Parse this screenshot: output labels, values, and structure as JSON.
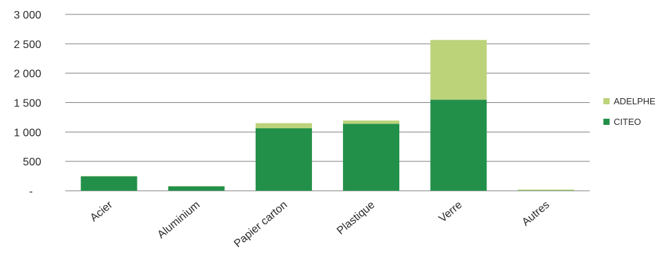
{
  "chart_data": {
    "type": "bar",
    "stacked": true,
    "categories": [
      "Acier",
      "Aluminium",
      "Papier carton",
      "Plastique",
      "Verre",
      "Autres"
    ],
    "series": [
      {
        "name": "CITEO",
        "color": "#23904a",
        "values": [
          245,
          75,
          1065,
          1140,
          1550,
          5
        ]
      },
      {
        "name": "ADELPHE",
        "color": "#bcd37a",
        "values": [
          5,
          5,
          85,
          55,
          1015,
          15
        ]
      }
    ],
    "ylim": [
      0,
      3000
    ],
    "yticks": [
      0,
      500,
      1000,
      1500,
      2000,
      2500,
      3000
    ],
    "ytick_labels": [
      "-",
      "500",
      "1 000",
      "1 500",
      "2 000",
      "2 500",
      "3 000"
    ],
    "grid": true,
    "legend_position": "right",
    "legend_order": [
      "ADELPHE",
      "CITEO"
    ],
    "gridline_color": "#7f7f7f"
  }
}
